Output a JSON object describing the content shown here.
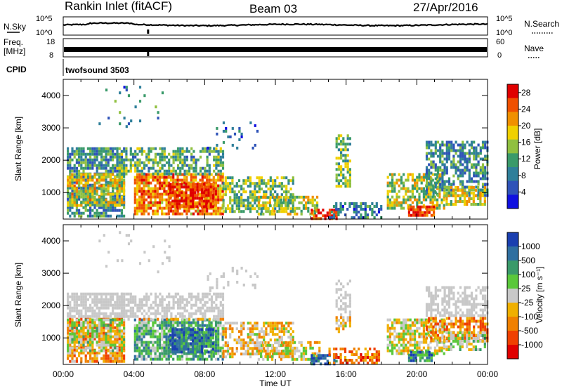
{
  "header": {
    "station_title": "Rankin Inlet (fitACF)",
    "beam": "Beam 03",
    "date": "27/Apr/2016"
  },
  "top_panels": {
    "nsky_label": "N.Sky",
    "nsky_ticks": [
      "10^5",
      "10^0"
    ],
    "nsearch_label": "N.Search",
    "nsearch_ticks": [
      "10^5",
      "10^0"
    ],
    "freq_label": "Freq.",
    "freq_unit": "[MHz]",
    "freq_ticks": [
      "18",
      "8"
    ],
    "nave_label": "Nave",
    "nave_ticks": [
      "60",
      "0"
    ],
    "cpid_label": "CPID",
    "cpid_value": "twofsound 3503"
  },
  "colors": {
    "power_scale": [
      "#1010e0",
      "#2f53b8",
      "#2f7f9a",
      "#3a9a6a",
      "#90c040",
      "#f0d000",
      "#f09000",
      "#f05000",
      "#e00000"
    ],
    "velocity_scale": [
      "#e00000",
      "#f04000",
      "#f08000",
      "#f0b000",
      "#c8c8c8",
      "#5ac83a",
      "#3a9a6a",
      "#2f6fa0",
      "#1a3fb0"
    ]
  },
  "chart_data": [
    {
      "type": "heatmap",
      "title": "",
      "ylabel": "Slant Range [km]",
      "xlabel": "",
      "yticks": [
        "1000",
        "2000",
        "3000",
        "4000"
      ],
      "ylim": [
        180,
        4500
      ],
      "xlim_hours": [
        0,
        24
      ],
      "colorbar": {
        "label": "Power [dB]",
        "tick_labels": [
          "4",
          "8",
          "12",
          "16",
          "20",
          "24",
          "28"
        ],
        "range": [
          0,
          30
        ]
      }
    },
    {
      "type": "heatmap",
      "title": "",
      "ylabel": "Slant Range [km]",
      "xlabel": "Time UT",
      "xticks": [
        "00:00",
        "04:00",
        "08:00",
        "12:00",
        "16:00",
        "20:00",
        "00:00"
      ],
      "yticks": [
        "1000",
        "2000",
        "3000",
        "4000"
      ],
      "ylim": [
        180,
        4500
      ],
      "xlim_hours": [
        0,
        24
      ],
      "colorbar": {
        "label": "Velocity [m s⁻¹]",
        "tick_labels": [
          "1000",
          "500",
          "100",
          "25",
          "-25",
          "-100",
          "-500",
          "-1000"
        ]
      }
    }
  ]
}
